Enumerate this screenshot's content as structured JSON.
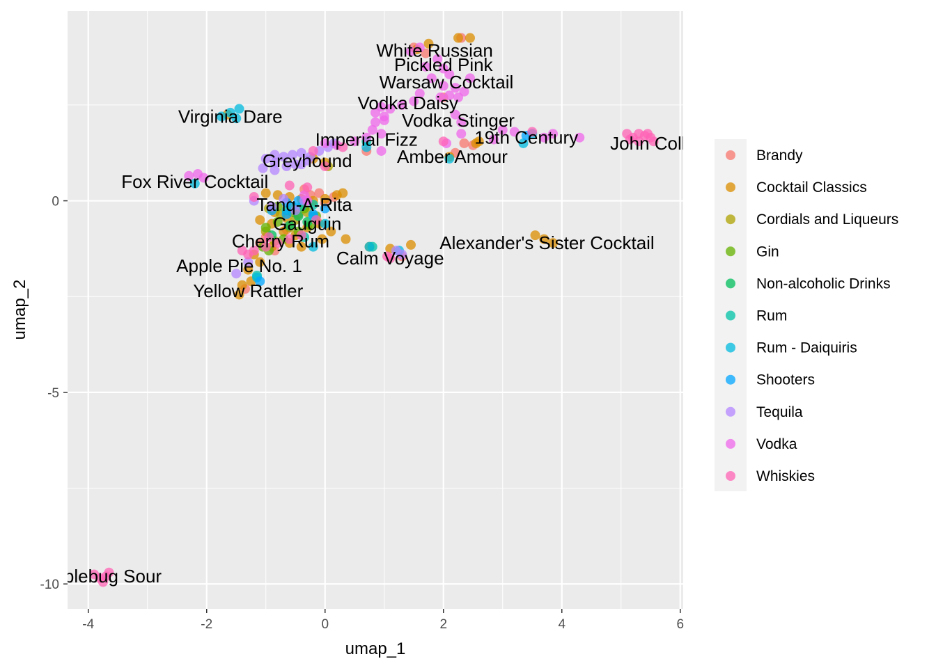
{
  "chart_data": {
    "type": "scatter",
    "xlabel": "umap_1",
    "ylabel": "umap_2",
    "xlim": [
      -4.35,
      6.05
    ],
    "ylim": [
      -10.65,
      4.95
    ],
    "x_ticks": [
      -4,
      -2,
      0,
      2,
      4,
      6
    ],
    "y_ticks": [
      -10,
      -5,
      0
    ],
    "x_tick_labels": [
      "-4",
      "-2",
      "0",
      "2",
      "4",
      "6"
    ],
    "y_tick_labels": [
      "-10",
      "-5",
      "0"
    ],
    "grid": true,
    "legend_position": "right",
    "legend": [
      {
        "label": "Brandy",
        "color": "#F8766D"
      },
      {
        "label": "Cocktail Classics",
        "color": "#DB8E00"
      },
      {
        "label": "Cordials and Liqueurs",
        "color": "#AEA200"
      },
      {
        "label": "Gin",
        "color": "#64B200"
      },
      {
        "label": "Non-alcoholic Drinks",
        "color": "#00BD5C"
      },
      {
        "label": "Rum",
        "color": "#00C1A7"
      },
      {
        "label": "Rum - Daiquiris",
        "color": "#00BADE"
      },
      {
        "label": "Shooters",
        "color": "#00A6FF"
      },
      {
        "label": "Tequila",
        "color": "#B385FF"
      },
      {
        "label": "Vodka",
        "color": "#EF67EB"
      },
      {
        "label": "Whiskies",
        "color": "#FF63B6"
      }
    ],
    "labels": [
      {
        "text": "White Russian",
        "x": 1.85,
        "y": 3.92
      },
      {
        "text": "Pickled Pink",
        "x": 2.0,
        "y": 3.55
      },
      {
        "text": "Warsaw Cocktail",
        "x": 2.05,
        "y": 3.1
      },
      {
        "text": "Vodka Daisy",
        "x": 1.4,
        "y": 2.55
      },
      {
        "text": "Vodka Stinger",
        "x": 2.25,
        "y": 2.1
      },
      {
        "text": "19th Century",
        "x": 3.4,
        "y": 1.65
      },
      {
        "text": "John Collins",
        "x": 5.65,
        "y": 1.5
      },
      {
        "text": "Amber Amour",
        "x": 2.15,
        "y": 1.15
      },
      {
        "text": "Imperial Fizz",
        "x": 0.7,
        "y": 1.6
      },
      {
        "text": "Virginia Dare",
        "x": -1.6,
        "y": 2.2
      },
      {
        "text": "Greyhound",
        "x": -0.3,
        "y": 1.05
      },
      {
        "text": "Fox River Cocktail",
        "x": -2.2,
        "y": 0.5
      },
      {
        "text": "Tanq-A-Rita",
        "x": -0.35,
        "y": -0.1
      },
      {
        "text": "Gauguin",
        "x": -0.3,
        "y": -0.6
      },
      {
        "text": "Cherry Rum",
        "x": -0.75,
        "y": -1.05
      },
      {
        "text": "Alexander's Sister Cocktail",
        "x": 3.75,
        "y": -1.1
      },
      {
        "text": "Calm Voyage",
        "x": 1.1,
        "y": -1.5
      },
      {
        "text": "Apple Pie No. 1",
        "x": -1.45,
        "y": -1.7
      },
      {
        "text": "Yellow Rattler",
        "x": -1.3,
        "y": -2.35
      },
      {
        "text": "Bumblebug Sour",
        "x": -3.9,
        "y": -9.8
      }
    ],
    "series": [
      {
        "name": "Brandy",
        "points": [
          [
            1.5,
            4.0
          ],
          [
            1.7,
            3.85
          ],
          [
            2.3,
            4.25
          ],
          [
            2.0,
            2.7
          ],
          [
            2.35,
            1.5
          ],
          [
            2.5,
            1.45
          ],
          [
            1.3,
            -1.45
          ],
          [
            0.0,
            -0.05
          ],
          [
            -0.35,
            0.3
          ],
          [
            -0.85,
            -1.3
          ],
          [
            -0.55,
            -0.2
          ],
          [
            0.15,
            0.1
          ],
          [
            -1.0,
            -0.95
          ],
          [
            -0.25,
            0.15
          ],
          [
            2.2,
            1.25
          ],
          [
            -1.35,
            -2.3
          ],
          [
            0.7,
            1.3
          ],
          [
            -0.1,
            0.2
          ],
          [
            -0.65,
            -0.75
          ],
          [
            -1.1,
            -1.1
          ]
        ]
      },
      {
        "name": "Cocktail Classics",
        "points": [
          [
            1.55,
            3.95
          ],
          [
            1.75,
            4.1
          ],
          [
            2.25,
            4.25
          ],
          [
            2.45,
            4.25
          ],
          [
            2.55,
            1.5
          ],
          [
            2.1,
            1.15
          ],
          [
            -1.65,
            2.25
          ],
          [
            3.55,
            -0.9
          ],
          [
            3.7,
            -1.0
          ],
          [
            3.85,
            -1.1
          ],
          [
            1.45,
            -1.15
          ],
          [
            1.1,
            -1.25
          ],
          [
            0.75,
            -1.2
          ],
          [
            -1.0,
            0.2
          ],
          [
            -0.8,
            0.15
          ],
          [
            -0.6,
            0.1
          ],
          [
            -0.4,
            0.05
          ],
          [
            -0.2,
            0.0
          ],
          [
            0.0,
            0.05
          ],
          [
            0.2,
            0.15
          ],
          [
            0.3,
            0.2
          ],
          [
            -1.1,
            -0.5
          ],
          [
            -0.9,
            -0.6
          ],
          [
            -0.7,
            -0.8
          ],
          [
            -0.5,
            -0.9
          ],
          [
            -0.3,
            -0.7
          ],
          [
            -0.1,
            -0.6
          ],
          [
            0.1,
            -0.8
          ],
          [
            0.35,
            -1.0
          ],
          [
            -1.2,
            -1.4
          ],
          [
            -1.3,
            -1.8
          ],
          [
            -1.4,
            -2.2
          ],
          [
            -1.45,
            -2.45
          ],
          [
            -1.25,
            -2.1
          ],
          [
            -1.1,
            -1.6
          ],
          [
            -0.9,
            -1.2
          ],
          [
            -0.6,
            -1.1
          ],
          [
            -0.4,
            -1.2
          ],
          [
            -0.05,
            -1.0
          ],
          [
            -0.85,
            -0.3
          ],
          [
            -0.65,
            -0.45
          ],
          [
            -0.45,
            -0.35
          ],
          [
            0.0,
            1.0
          ],
          [
            2.6,
            1.55
          ],
          [
            -0.2,
            1.1
          ]
        ]
      },
      {
        "name": "Cordials and Liqueurs",
        "points": [
          [
            -0.95,
            -0.2
          ],
          [
            -0.75,
            -0.35
          ],
          [
            -0.5,
            -0.5
          ],
          [
            -0.3,
            -0.3
          ],
          [
            -1.0,
            -0.8
          ],
          [
            -0.6,
            -0.7
          ],
          [
            0.05,
            0.9
          ],
          [
            -0.85,
            -1.05
          ]
        ]
      },
      {
        "name": "Gin",
        "points": [
          [
            -1.0,
            -0.7
          ],
          [
            -0.8,
            -0.55
          ],
          [
            -0.55,
            -0.3
          ],
          [
            -0.35,
            -0.2
          ],
          [
            -0.15,
            -0.4
          ],
          [
            -0.95,
            -1.3
          ],
          [
            -0.7,
            -1.0
          ],
          [
            -0.45,
            -0.8
          ],
          [
            -0.25,
            -0.65
          ],
          [
            -1.05,
            -1.2
          ],
          [
            -0.8,
            -0.15
          ]
        ]
      },
      {
        "name": "Non-alcoholic Drinks",
        "points": [
          [
            -0.45,
            -0.4
          ],
          [
            -0.3,
            -0.55
          ],
          [
            -0.6,
            -0.65
          ],
          [
            -0.9,
            -0.9
          ]
        ]
      },
      {
        "name": "Rum",
        "points": [
          [
            -0.2,
            -0.1
          ],
          [
            -0.4,
            -0.15
          ],
          [
            -0.65,
            -0.25
          ],
          [
            0.8,
            -1.2
          ],
          [
            -1.15,
            -1.95
          ],
          [
            0.7,
            1.55
          ],
          [
            -0.35,
            -0.95
          ]
        ]
      },
      {
        "name": "Rum - Daiquiris",
        "points": [
          [
            -1.75,
            2.2
          ],
          [
            -1.6,
            2.3
          ],
          [
            -1.45,
            2.4
          ],
          [
            -1.5,
            2.15
          ],
          [
            -2.2,
            0.45
          ],
          [
            -0.2,
            -1.2
          ],
          [
            0.75,
            -1.2
          ],
          [
            1.25,
            -1.3
          ],
          [
            0.0,
            -0.6
          ],
          [
            -0.2,
            -0.4
          ],
          [
            2.1,
            1.1
          ],
          [
            3.35,
            1.5
          ],
          [
            3.5,
            1.75
          ],
          [
            -1.15,
            -2.0
          ],
          [
            0.7,
            1.4
          ],
          [
            -0.55,
            -0.15
          ]
        ]
      },
      {
        "name": "Shooters",
        "points": [
          [
            -0.65,
            -0.05
          ],
          [
            -0.45,
            0.0
          ],
          [
            -0.2,
            -0.35
          ],
          [
            0.0,
            -0.2
          ],
          [
            -0.65,
            -0.35
          ],
          [
            -1.1,
            -2.1
          ],
          [
            3.4,
            1.7
          ],
          [
            -0.9,
            -0.25
          ]
        ]
      },
      {
        "name": "Tequila",
        "points": [
          [
            -1.05,
            0.85
          ],
          [
            -1.0,
            1.1
          ],
          [
            -0.85,
            1.0
          ],
          [
            -0.7,
            1.15
          ],
          [
            -0.55,
            1.2
          ],
          [
            -0.4,
            1.25
          ],
          [
            -0.3,
            1.05
          ],
          [
            -0.5,
            0.95
          ],
          [
            -0.85,
            0.8
          ],
          [
            -0.65,
            0.9
          ],
          [
            0.05,
            1.4
          ],
          [
            0.15,
            1.5
          ],
          [
            -0.1,
            1.3
          ],
          [
            -1.2,
            0.0
          ],
          [
            -0.9,
            -0.15
          ],
          [
            -0.5,
            -0.25
          ],
          [
            -0.35,
            0.0
          ],
          [
            -0.7,
            0.05
          ],
          [
            -1.5,
            -1.9
          ],
          [
            -1.3,
            -1.6
          ],
          [
            1.2,
            -1.3
          ],
          [
            1.3,
            -1.4
          ],
          [
            -0.4,
            0.95
          ],
          [
            -0.25,
            1.15
          ],
          [
            -0.85,
            1.2
          ]
        ]
      },
      {
        "name": "Vodka",
        "points": [
          [
            1.45,
            3.9
          ],
          [
            1.6,
            4.0
          ],
          [
            1.9,
            3.7
          ],
          [
            2.0,
            3.45
          ],
          [
            2.1,
            3.3
          ],
          [
            1.8,
            3.2
          ],
          [
            2.0,
            3.0
          ],
          [
            2.2,
            2.95
          ],
          [
            2.35,
            2.85
          ],
          [
            1.95,
            2.7
          ],
          [
            2.1,
            2.75
          ],
          [
            2.25,
            2.7
          ],
          [
            1.7,
            3.5
          ],
          [
            1.6,
            2.8
          ],
          [
            0.85,
            2.3
          ],
          [
            1.0,
            2.2
          ],
          [
            1.1,
            2.4
          ],
          [
            0.95,
            2.45
          ],
          [
            1.3,
            2.5
          ],
          [
            0.85,
            2.05
          ],
          [
            1.0,
            2.1
          ],
          [
            2.2,
            2.25
          ],
          [
            2.3,
            2.05
          ],
          [
            0.8,
            1.85
          ],
          [
            0.95,
            1.75
          ],
          [
            2.3,
            1.75
          ],
          [
            2.05,
            1.5
          ],
          [
            0.5,
            1.55
          ],
          [
            0.7,
            1.65
          ],
          [
            0.0,
            1.5
          ],
          [
            0.2,
            1.45
          ],
          [
            -0.3,
            0.0
          ],
          [
            0.95,
            1.3
          ],
          [
            2.85,
            1.6
          ],
          [
            3.0,
            1.85
          ],
          [
            3.2,
            1.8
          ],
          [
            3.7,
            1.65
          ],
          [
            3.85,
            1.75
          ],
          [
            4.3,
            1.65
          ],
          [
            -2.3,
            0.65
          ],
          [
            -2.15,
            0.7
          ],
          [
            -2.05,
            0.6
          ],
          [
            1.5,
            2.6
          ],
          [
            2.45,
            3.2
          ],
          [
            -0.35,
            0.15
          ]
        ]
      },
      {
        "name": "Whiskies",
        "points": [
          [
            5.1,
            1.75
          ],
          [
            5.2,
            1.65
          ],
          [
            5.3,
            1.75
          ],
          [
            5.4,
            1.7
          ],
          [
            5.5,
            1.65
          ],
          [
            5.55,
            1.55
          ],
          [
            5.3,
            1.55
          ],
          [
            5.15,
            1.6
          ],
          [
            5.45,
            1.75
          ],
          [
            3.5,
            1.8
          ],
          [
            0.0,
            0.9
          ],
          [
            -0.3,
            0.35
          ],
          [
            -0.6,
            0.4
          ],
          [
            0.3,
            1.4
          ],
          [
            -0.2,
            1.3
          ],
          [
            -1.3,
            -1.4
          ],
          [
            -1.4,
            -1.3
          ],
          [
            -1.2,
            -1.3
          ],
          [
            -1.0,
            -1.2
          ],
          [
            -0.8,
            -1.1
          ],
          [
            -0.6,
            -1.0
          ],
          [
            -0.4,
            -0.9
          ],
          [
            -0.15,
            -0.5
          ],
          [
            1.1,
            -1.5
          ],
          [
            1.05,
            -1.45
          ],
          [
            -3.9,
            -9.75
          ],
          [
            -3.8,
            -9.85
          ],
          [
            -3.7,
            -9.8
          ],
          [
            -3.65,
            -9.7
          ],
          [
            -3.75,
            -9.95
          ],
          [
            2.0,
            1.55
          ],
          [
            -1.2,
            0.1
          ],
          [
            -0.95,
            -0.95
          ]
        ]
      }
    ]
  }
}
